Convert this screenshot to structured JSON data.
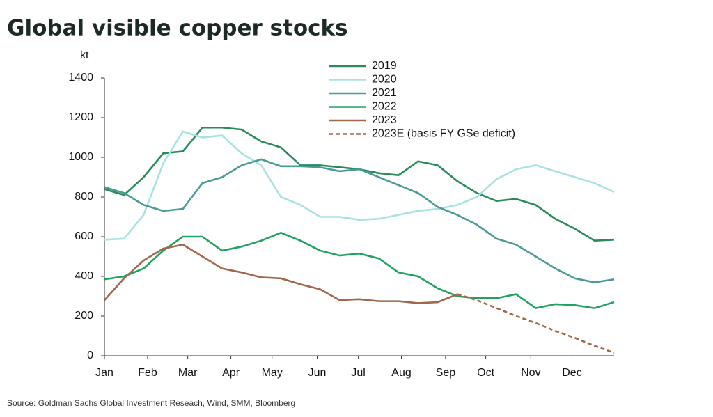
{
  "chart_data": {
    "type": "line",
    "title": "Global visible copper stocks",
    "y_label": "kt",
    "source": "Source: Goldman Sachs Global Investment Reseach, Wind, SMM, Bloomberg",
    "x": [
      0,
      2,
      4,
      6,
      8,
      10,
      12,
      14,
      16,
      18,
      20,
      22,
      24,
      26,
      28,
      30,
      32,
      34,
      36,
      38,
      40,
      42,
      44,
      46,
      48,
      50,
      52
    ],
    "xlim": [
      0,
      52
    ],
    "xticks": [
      {
        "value": 0,
        "label": "Jan"
      },
      {
        "value": 4.4,
        "label": "Feb"
      },
      {
        "value": 8.5,
        "label": "Mar"
      },
      {
        "value": 12.9,
        "label": "Apr"
      },
      {
        "value": 17.1,
        "label": "May"
      },
      {
        "value": 21.7,
        "label": "Jun"
      },
      {
        "value": 25.9,
        "label": "Jul"
      },
      {
        "value": 30.3,
        "label": "Aug"
      },
      {
        "value": 34.8,
        "label": "Sep"
      },
      {
        "value": 38.9,
        "label": "Oct"
      },
      {
        "value": 43.5,
        "label": "Nov"
      },
      {
        "value": 47.7,
        "label": "Dec"
      }
    ],
    "ylim": [
      0,
      1400
    ],
    "yticks": [
      0,
      200,
      400,
      600,
      800,
      1000,
      1200,
      1400
    ],
    "series": [
      {
        "name": "2019",
        "color": "#2a8a5c",
        "values": [
          840,
          810,
          900,
          1020,
          1030,
          1150,
          1150,
          1140,
          1080,
          1050,
          960,
          960,
          950,
          940,
          920,
          910,
          980,
          960,
          880,
          820,
          780,
          790,
          760,
          690,
          640,
          580,
          585
        ]
      },
      {
        "name": "2020",
        "color": "#a8e2e2",
        "values": [
          585,
          590,
          710,
          970,
          1130,
          1100,
          1110,
          1020,
          960,
          800,
          760,
          700,
          700,
          685,
          690,
          710,
          730,
          740,
          760,
          800,
          890,
          940,
          960,
          930,
          900,
          870,
          825
        ]
      },
      {
        "name": "2021",
        "color": "#4a9a96",
        "values": [
          850,
          820,
          760,
          730,
          740,
          870,
          900,
          960,
          990,
          955,
          955,
          950,
          930,
          940,
          900,
          860,
          820,
          750,
          710,
          660,
          590,
          560,
          500,
          440,
          390,
          370,
          385
        ]
      },
      {
        "name": "2022",
        "color": "#22a262",
        "values": [
          385,
          400,
          440,
          530,
          600,
          600,
          530,
          550,
          580,
          620,
          580,
          530,
          505,
          515,
          490,
          420,
          400,
          340,
          300,
          290,
          290,
          310,
          240,
          260,
          255,
          240,
          270
        ]
      },
      {
        "name": "2023",
        "color": "#a0674a",
        "values": [
          280,
          390,
          480,
          540,
          560,
          500,
          440,
          420,
          395,
          390,
          360,
          335,
          280,
          285,
          275,
          275,
          265,
          270,
          310,
          null,
          null,
          null,
          null,
          null,
          null,
          null,
          null
        ]
      },
      {
        "name": "2023E (basis FY GSe deficit)",
        "color": "#a0674a",
        "dash": true,
        "values": [
          null,
          null,
          null,
          null,
          null,
          null,
          null,
          null,
          null,
          null,
          null,
          null,
          null,
          null,
          null,
          null,
          null,
          null,
          310,
          280,
          240,
          200,
          165,
          125,
          90,
          50,
          15
        ]
      }
    ]
  }
}
